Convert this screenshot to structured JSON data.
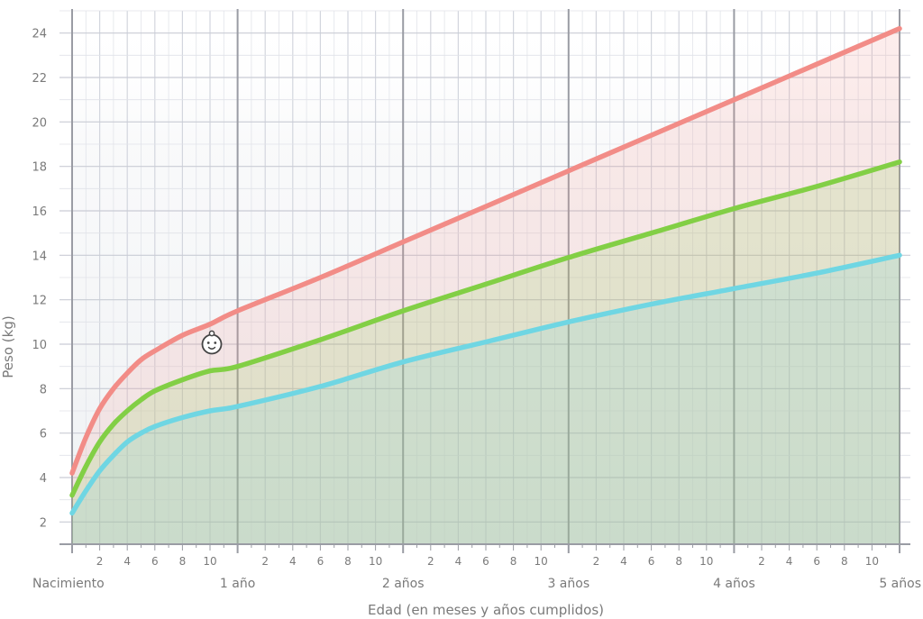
{
  "chart_data": {
    "type": "line",
    "xlabel": "Edad (en meses y años cumplidos)",
    "ylabel": "Peso (kg)",
    "xlim": [
      0,
      60
    ],
    "ylim": [
      1,
      25
    ],
    "y_ticks": [
      2,
      4,
      6,
      8,
      10,
      12,
      14,
      16,
      18,
      20,
      22,
      24
    ],
    "x_month_ticks": [
      2,
      4,
      6,
      8,
      10
    ],
    "x_year_labels": [
      "Nacimiento",
      "1 año",
      "2 años",
      "3 años",
      "4 años",
      "5 años"
    ],
    "grid": true,
    "legend": "none",
    "marker": {
      "icon": "baby-face-icon",
      "x": 10,
      "y": 10
    },
    "x": [
      0,
      1,
      2,
      3,
      4,
      5,
      6,
      8,
      10,
      12,
      18,
      24,
      30,
      36,
      42,
      48,
      54,
      60
    ],
    "series": [
      {
        "color": "#f28c87",
        "values": [
          4.2,
          5.8,
          7.1,
          8.0,
          8.7,
          9.3,
          9.7,
          10.4,
          10.9,
          11.5,
          13.0,
          14.6,
          16.2,
          17.8,
          19.4,
          21.0,
          22.6,
          24.2
        ]
      },
      {
        "color": "#82cf45",
        "values": [
          3.2,
          4.5,
          5.6,
          6.4,
          7.0,
          7.5,
          7.9,
          8.4,
          8.8,
          9.0,
          10.2,
          11.5,
          12.7,
          13.9,
          15.0,
          16.1,
          17.1,
          18.2
        ]
      },
      {
        "color": "#6fd6e3",
        "values": [
          2.4,
          3.4,
          4.3,
          5.0,
          5.6,
          6.0,
          6.3,
          6.7,
          7.0,
          7.2,
          8.1,
          9.2,
          10.1,
          11.0,
          11.8,
          12.5,
          13.2,
          14.0
        ]
      }
    ]
  }
}
